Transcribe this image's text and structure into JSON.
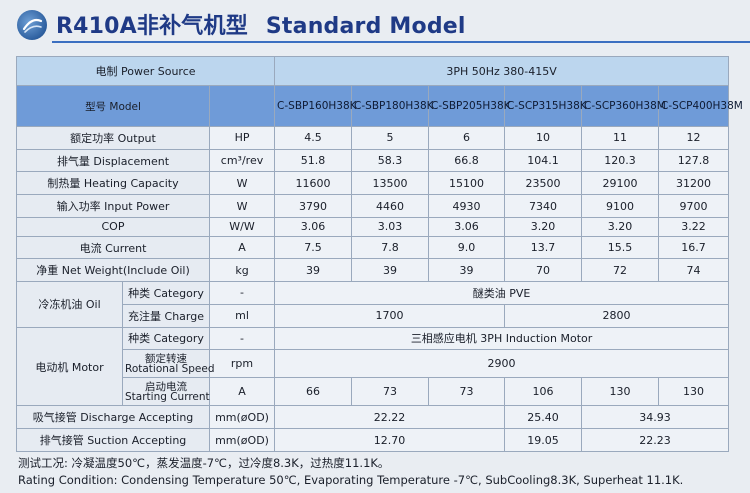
{
  "header": {
    "title_cn": "R410A非补气机型",
    "title_en": "Standard Model"
  },
  "table": {
    "power_label": "电制 Power Source",
    "power_value": "3PH 50Hz 380-415V",
    "model_label": "型号 Model",
    "models": [
      "C-SBP160H38K",
      "C-SBP180H38K",
      "C-SBP205H38K",
      "C-SCP315H38K",
      "C-SCP360H38M",
      "C-SCP400H38M"
    ],
    "rows": [
      {
        "label": "额定功率 Output",
        "unit": "HP",
        "values": [
          "4.5",
          "5",
          "6",
          "10",
          "11",
          "12"
        ]
      },
      {
        "label": "排气量 Displacement",
        "unit": "cm³/rev",
        "values": [
          "51.8",
          "58.3",
          "66.8",
          "104.1",
          "120.3",
          "127.8"
        ]
      },
      {
        "label": "制热量 Heating Capacity",
        "unit": "W",
        "values": [
          "11600",
          "13500",
          "15100",
          "23500",
          "29100",
          "31200"
        ]
      },
      {
        "label": "输入功率 Input Power",
        "unit": "W",
        "values": [
          "3790",
          "4460",
          "4930",
          "7340",
          "9100",
          "9700"
        ]
      },
      {
        "label": "COP",
        "unit": "W/W",
        "values": [
          "3.06",
          "3.03",
          "3.06",
          "3.20",
          "3.20",
          "3.22"
        ]
      },
      {
        "label": "电流 Current",
        "unit": "A",
        "values": [
          "7.5",
          "7.8",
          "9.0",
          "13.7",
          "15.5",
          "16.7"
        ]
      },
      {
        "label": "净重 Net Weight(Include Oil)",
        "unit": "kg",
        "values": [
          "39",
          "39",
          "39",
          "70",
          "72",
          "74"
        ]
      }
    ],
    "oil": {
      "label": "冷冻机油 Oil",
      "category_label": "种类 Category",
      "category_unit": "-",
      "category_value": "醚类油 PVE",
      "charge_label": "充注量 Charge",
      "charge_unit": "ml",
      "charge_values": [
        "1700",
        "2800"
      ]
    },
    "motor": {
      "label": "电动机 Motor",
      "category_label": "种类 Category",
      "category_unit": "-",
      "category_value": "三相感应电机 3PH Induction Motor",
      "speed_label_cn": "额定转速",
      "speed_label_en": "Rotational Speed",
      "speed_unit": "rpm",
      "speed_value": "2900",
      "start_label_cn": "启动电流",
      "start_label_en": "Starting Current",
      "start_unit": "A",
      "start_values": [
        "66",
        "73",
        "73",
        "106",
        "130",
        "130"
      ]
    },
    "discharge": {
      "label": "吸气接管 Discharge Accepting",
      "unit": "mm(øOD)",
      "values": [
        "22.22",
        "25.40",
        "34.93"
      ]
    },
    "suction": {
      "label": "排气接管 Suction Accepting",
      "unit": "mm(øOD)",
      "values": [
        "12.70",
        "19.05",
        "22.23"
      ]
    }
  },
  "footer": {
    "line1": "测试工况: 冷凝温度50℃，蒸发温度-7℃，过冷度8.3K，过热度11.1K。",
    "line2": "Rating Condition: Condensing Temperature 50℃, Evaporating Temperature -7℃, SubCooling8.3K, Superheat 11.1K."
  },
  "colors": {
    "title": "#1f3a86",
    "power_row": "#bcd6ee",
    "model_row": "#6f9bd8",
    "rule": "#3b6fc1"
  }
}
